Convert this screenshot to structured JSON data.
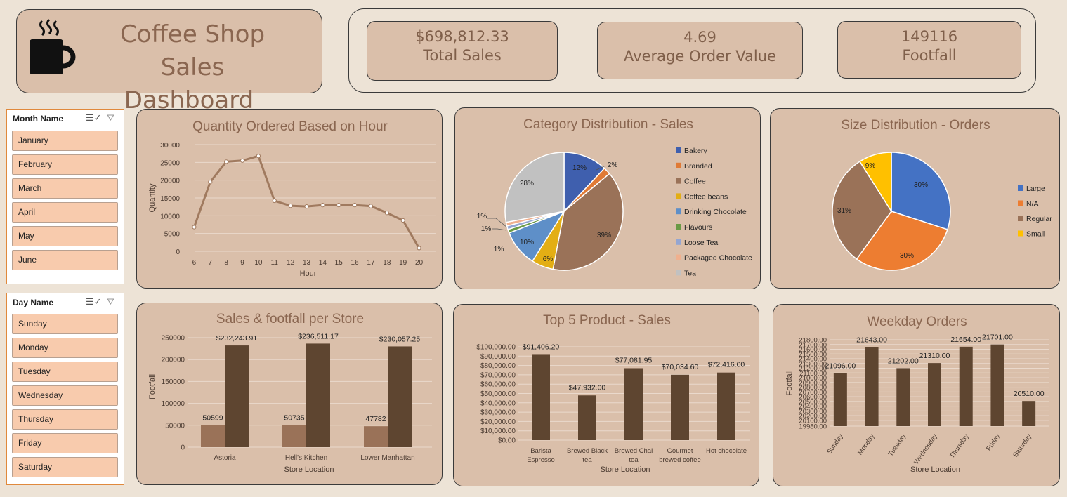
{
  "header": {
    "title_line1": "Coffee Shop Sales",
    "title_line2": "Dashboard"
  },
  "kpis": [
    {
      "value": "$698,812.33",
      "label": "Total Sales"
    },
    {
      "value": "4.69",
      "label": "Average Order Value"
    },
    {
      "value": "149116",
      "label": "Footfall"
    }
  ],
  "month_slicer": {
    "title": "Month Name",
    "items": [
      "January",
      "February",
      "March",
      "April",
      "May",
      "June"
    ]
  },
  "day_slicer": {
    "title": "Day Name",
    "items": [
      "Sunday",
      "Monday",
      "Tuesday",
      "Wednesday",
      "Thursday",
      "Friday",
      "Saturday"
    ]
  },
  "chart_data": [
    {
      "id": "hour",
      "type": "line",
      "title": "Quantity Ordered Based on Hour",
      "xlabel": "Hour",
      "ylabel": "Quantity",
      "x": [
        6,
        7,
        8,
        9,
        10,
        11,
        12,
        13,
        14,
        15,
        16,
        17,
        18,
        19,
        20
      ],
      "values": [
        6800,
        19500,
        25200,
        25500,
        26800,
        14200,
        12800,
        12600,
        13000,
        13000,
        13000,
        12700,
        10800,
        8700,
        900
      ],
      "ylim": [
        0,
        30000
      ],
      "yticks": [
        "0",
        "5000",
        "10000",
        "15000",
        "20000",
        "25000",
        "30000"
      ],
      "grid": true,
      "color": "#A07A5F"
    },
    {
      "id": "category",
      "type": "pie",
      "title": "Category Distribution - Sales",
      "labels": [
        "Bakery",
        "Branded",
        "Coffee",
        "Coffee beans",
        "Drinking Chocolate",
        "Flavours",
        "Loose Tea",
        "Packaged Chocolate",
        "Tea"
      ],
      "values": [
        12,
        2,
        39,
        6,
        10,
        1,
        1,
        1,
        28
      ],
      "data_labels": [
        "12%",
        "2%",
        "39%",
        "6%",
        "10%",
        "1%",
        "1%",
        "1%",
        "28%"
      ],
      "colors": [
        "#3F5FAE",
        "#E07A35",
        "#9A7258",
        "#E3AE14",
        "#5E8FC8",
        "#6A9A45",
        "#94A6D2",
        "#F0B08E",
        "#C1C1C1"
      ],
      "legend": "right"
    },
    {
      "id": "size",
      "type": "pie",
      "title": "Size Distribution - Orders",
      "labels": [
        "Large",
        "N/A",
        "Regular",
        "Small"
      ],
      "values": [
        30,
        30,
        31,
        9
      ],
      "data_labels": [
        "30%",
        "30%",
        "31%",
        "9%"
      ],
      "colors": [
        "#4472C4",
        "#ED7D31",
        "#9A7258",
        "#FFC000"
      ],
      "legend": "right"
    },
    {
      "id": "store",
      "type": "bar",
      "title": "Sales & footfall per Store",
      "xlabel": "Store Location",
      "ylabel": "Footfall",
      "categories": [
        "Astoria",
        "Hell's Kitchen",
        "Lower Manhattan"
      ],
      "series": [
        {
          "values": [
            50599,
            50735,
            47782
          ],
          "labels": [
            "50599",
            "50735",
            "47782"
          ],
          "color": "#9A7258"
        },
        {
          "values": [
            232243.91,
            236511.17,
            230057.25
          ],
          "labels": [
            "$232,243.91",
            "$236,511.17",
            "$230,057.25"
          ],
          "color": "#5E4530"
        }
      ],
      "ylim": [
        0,
        250000
      ],
      "yticks": [
        "0",
        "50000",
        "100000",
        "150000",
        "200000",
        "250000"
      ],
      "grid": true
    },
    {
      "id": "products",
      "type": "bar",
      "title": "Top 5 Product - Sales",
      "xlabel": "Store Location",
      "categories": [
        "Barista Espresso",
        "Brewed Black tea",
        "Brewed Chai tea",
        "Gourmet brewed coffee",
        "Hot chocolate"
      ],
      "values": [
        91406.2,
        47932.0,
        77081.95,
        70034.6,
        72416.0
      ],
      "labels": [
        "$91,406.20",
        "$47,932.00",
        "$77,081.95",
        "$70,034.60",
        "$72,416.00"
      ],
      "ylim": [
        0,
        100000
      ],
      "yticks": [
        "$0.00",
        "$10,000.00",
        "$20,000.00",
        "$30,000.00",
        "$40,000.00",
        "$50,000.00",
        "$60,000.00",
        "$70,000.00",
        "$80,000.00",
        "$90,000.00",
        "$100,000.00"
      ],
      "grid": true,
      "color": "#5E4530"
    },
    {
      "id": "weekday",
      "type": "bar",
      "title": "Weekday Orders",
      "xlabel": "Store Location",
      "ylabel": "Footfall",
      "categories": [
        "Sunday",
        "Monday",
        "Tuesday",
        "Wednesday",
        "Thursday",
        "Friday",
        "Saturday"
      ],
      "values": [
        21096,
        21643,
        21202,
        21310,
        21654,
        21701,
        20510
      ],
      "labels": [
        "21096.00",
        "21643.00",
        "21202.00",
        "21310.00",
        "21654.00",
        "21701.00",
        "20510.00"
      ],
      "ylim": [
        19980,
        21800
      ],
      "ytick_values": [
        19980,
        20100,
        20200,
        20300,
        20400,
        20500,
        20600,
        20700,
        20800,
        20900,
        21000,
        21100,
        21200,
        21300,
        21400,
        21500,
        21600,
        21700,
        21800
      ],
      "yticks": [
        "19980.00",
        "20100.00",
        "20200.00",
        "20300.00",
        "20400.00",
        "20500.00",
        "20600.00",
        "20700.00",
        "20800.00",
        "20900.00",
        "21000.00",
        "21100.00",
        "21200.00",
        "21300.00",
        "21400.00",
        "21500.00",
        "21600.00",
        "21700.00",
        "21800.00"
      ],
      "grid": true,
      "color": "#5E4530"
    }
  ]
}
